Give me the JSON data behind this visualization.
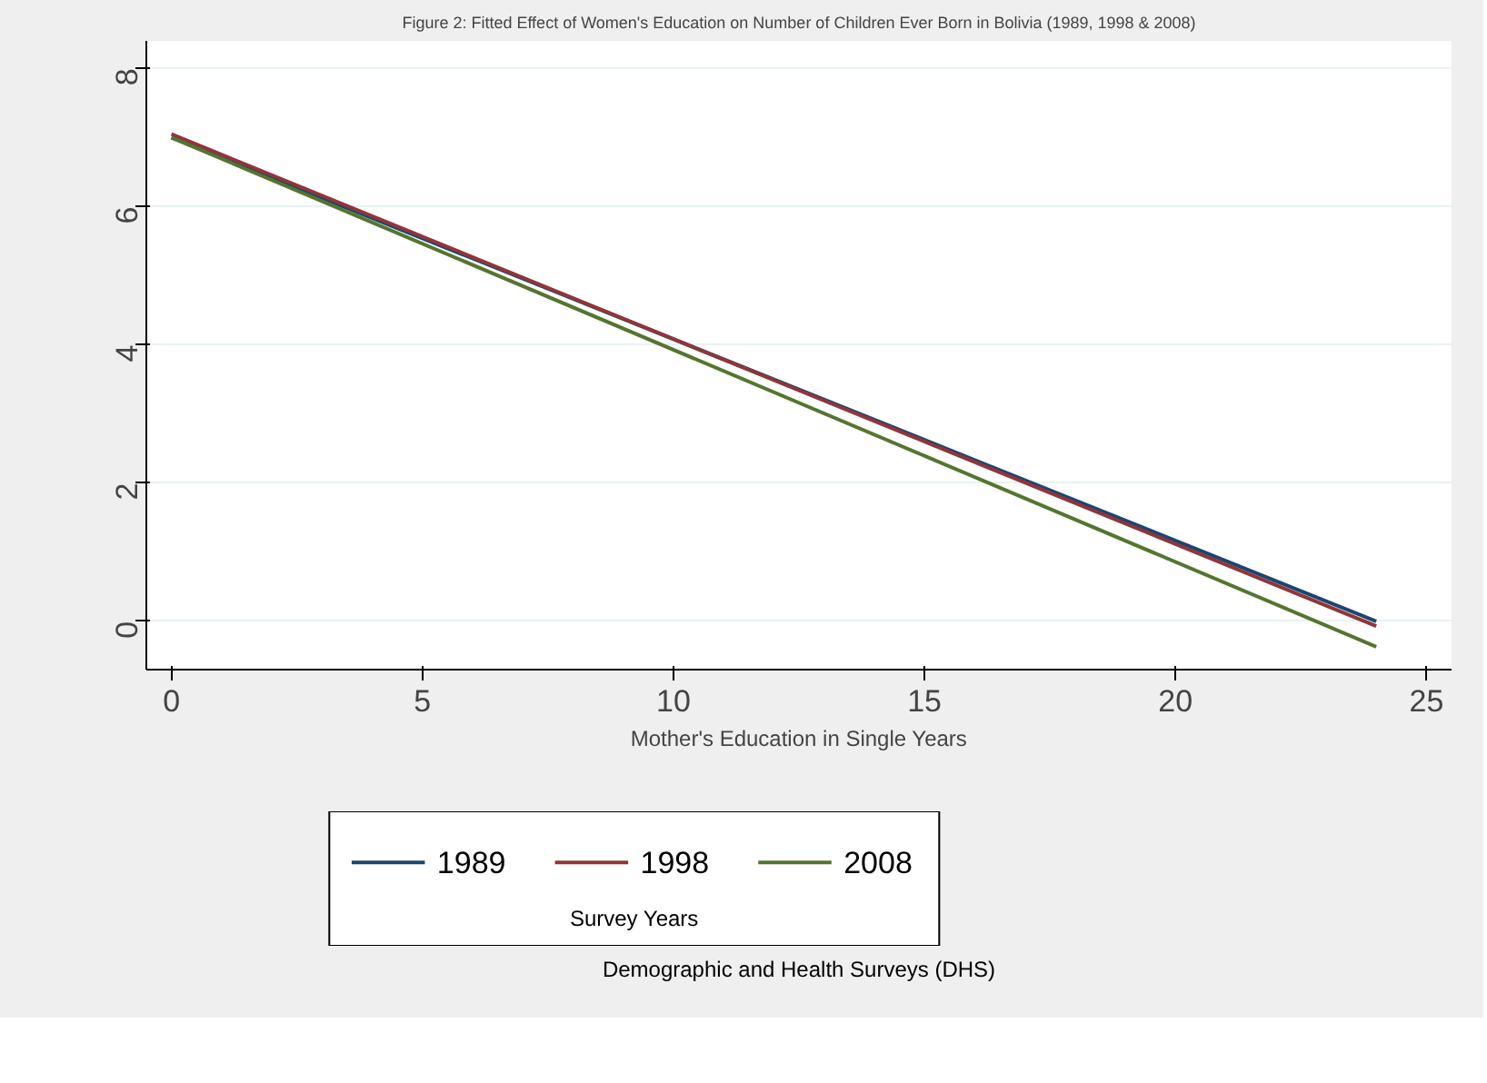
{
  "chart_data": {
    "type": "line",
    "title": "Figure 2: Fitted Effect of Women's Education on Number of Children Ever Born in Bolivia (1989, 1998 & 2008)",
    "xlabel": "Mother's Education in Single Years",
    "legend_title": "Survey Years",
    "annotations": [
      "Demographic and Health Surveys (DHS)"
    ],
    "x": [
      0,
      24
    ],
    "series": [
      {
        "name": "1989",
        "color": "#1a476f",
        "values": [
          7.0,
          0.0
        ]
      },
      {
        "name": "1998",
        "color": "#90353b",
        "values": [
          7.05,
          -0.07
        ]
      },
      {
        "name": "2008",
        "color": "#55752f",
        "values": [
          7.0,
          -0.37
        ]
      }
    ],
    "xlim": [
      -0.5,
      25.5
    ],
    "ylim": [
      -0.7,
      8.4
    ],
    "xticks": [
      0,
      5,
      10,
      15,
      20,
      25
    ],
    "yticks": [
      0,
      2,
      4,
      6,
      8
    ],
    "grid": "y",
    "legend": "bottom",
    "marker": "none",
    "line_style": "solid"
  }
}
